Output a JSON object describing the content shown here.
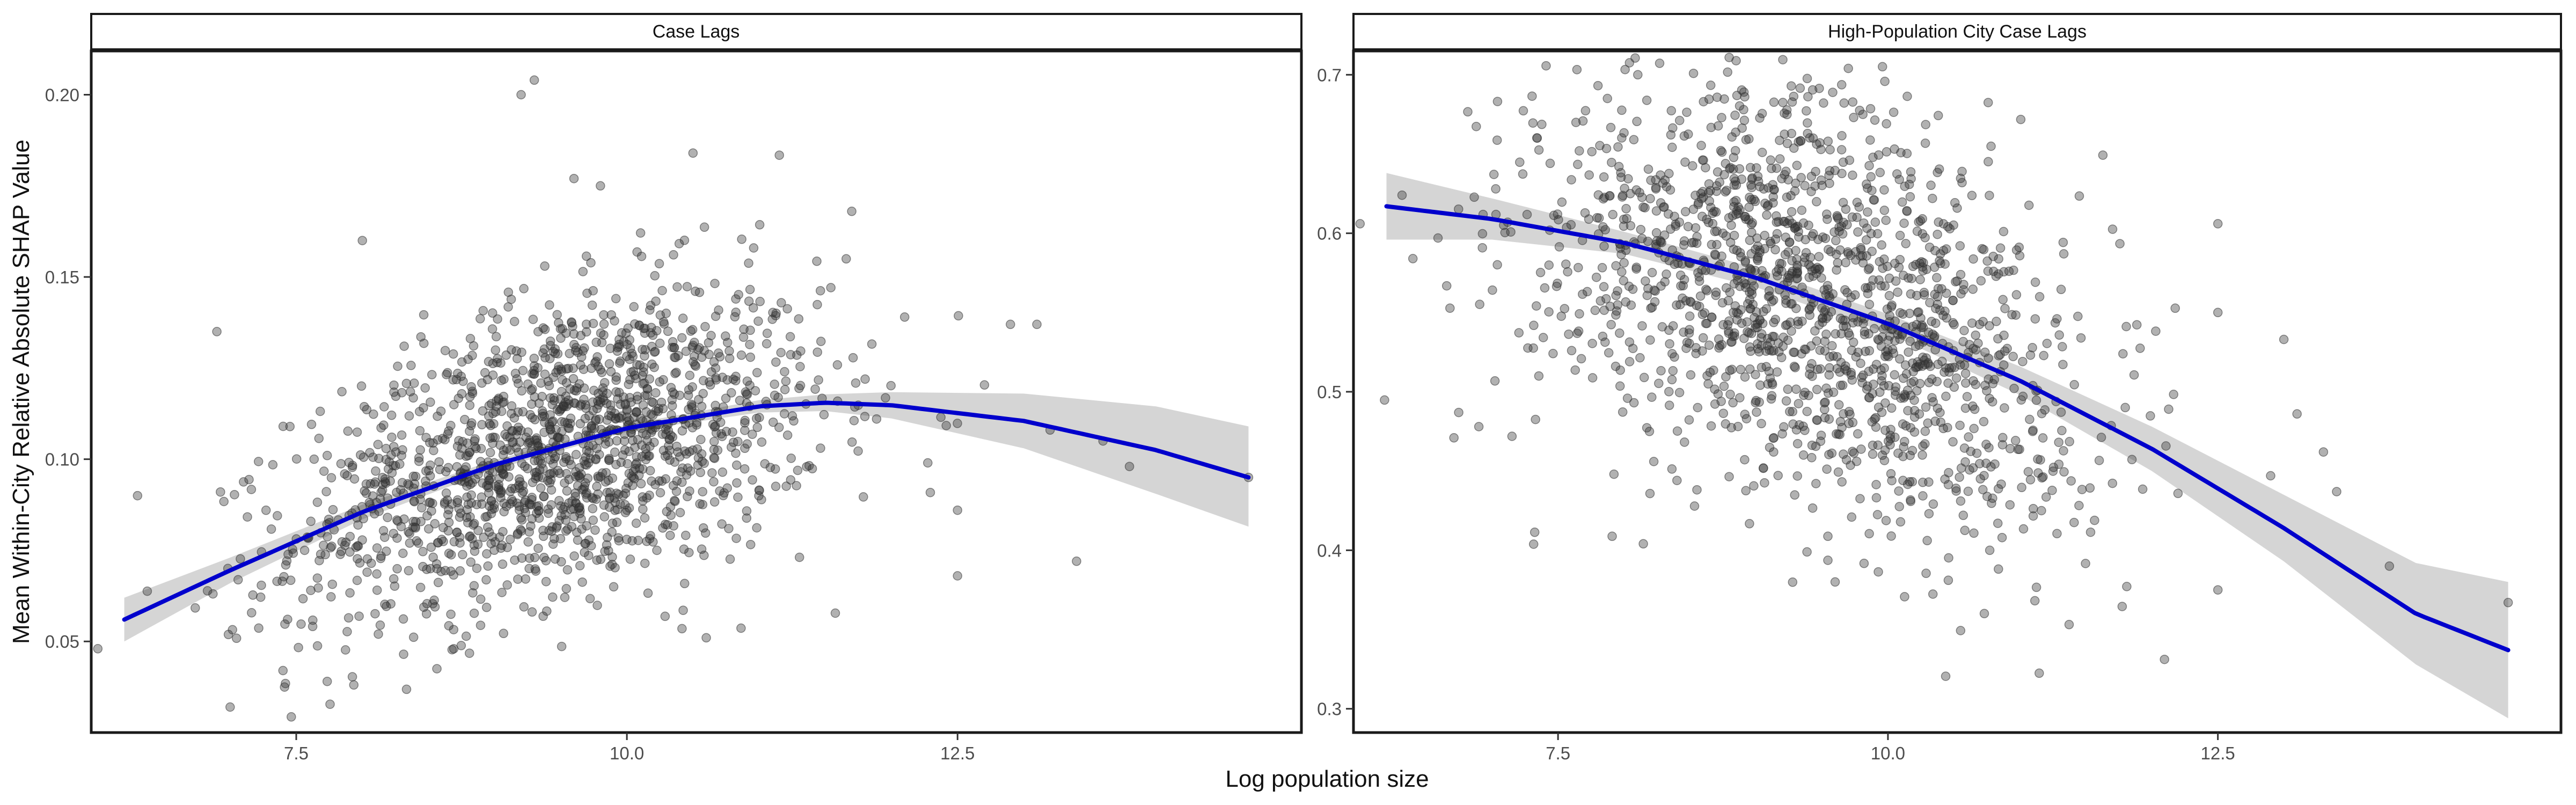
{
  "figure": {
    "xlabel": "Log population size",
    "ylabel": "Mean Within-City Relative Absolute SHAP Value",
    "colors": {
      "points": "#333333",
      "fit_line": "#0000CC",
      "ribbon": "#D3D3D3",
      "panel_border": "#1a1a1a"
    }
  },
  "chart_data": [
    {
      "type": "scatter",
      "title": "Case Lags",
      "xlabel": "Log population size",
      "ylabel": "Mean Within-City Relative Absolute SHAP Value",
      "xlim": [
        5.95,
        15.1
      ],
      "ylim": [
        0.025,
        0.212
      ],
      "x_ticks": [
        7.5,
        10.0,
        12.5
      ],
      "x_tick_labels": [
        "7.5",
        "10.0",
        "12.5"
      ],
      "y_ticks": [
        0.05,
        0.1,
        0.15,
        0.2
      ],
      "y_tick_labels": [
        "0.05",
        "0.10",
        "0.15",
        "0.20"
      ],
      "grid": false,
      "n_points_approx": 1600,
      "point_cloud": {
        "x_center": 9.5,
        "x_spread": 1.0,
        "y_center": 0.105,
        "y_spread": 0.02
      },
      "outliers": [
        {
          "x": 9.2,
          "y": 0.2
        },
        {
          "x": 9.3,
          "y": 0.204
        },
        {
          "x": 10.5,
          "y": 0.184
        },
        {
          "x": 9.6,
          "y": 0.177
        },
        {
          "x": 9.8,
          "y": 0.175
        },
        {
          "x": 11.7,
          "y": 0.168
        },
        {
          "x": 8.0,
          "y": 0.16
        },
        {
          "x": 6.9,
          "y": 0.135
        },
        {
          "x": 6.3,
          "y": 0.09
        },
        {
          "x": 6.0,
          "y": 0.048
        },
        {
          "x": 7.0,
          "y": 0.032
        },
        {
          "x": 7.4,
          "y": 0.042
        },
        {
          "x": 10.6,
          "y": 0.051
        },
        {
          "x": 13.4,
          "y": 0.072
        },
        {
          "x": 13.8,
          "y": 0.098
        },
        {
          "x": 12.5,
          "y": 0.068
        },
        {
          "x": 13.1,
          "y": 0.137
        },
        {
          "x": 12.9,
          "y": 0.137
        },
        {
          "x": 12.1,
          "y": 0.139
        },
        {
          "x": 14.7,
          "y": 0.095
        },
        {
          "x": 12.5,
          "y": 0.086
        },
        {
          "x": 13.2,
          "y": 0.108
        },
        {
          "x": 13.6,
          "y": 0.105
        }
      ],
      "fit": {
        "x": [
          6.2,
          7.0,
          8.0,
          9.0,
          10.0,
          11.0,
          11.5,
          12.0,
          13.0,
          14.0,
          14.7
        ],
        "y": [
          0.056,
          0.0695,
          0.0855,
          0.0985,
          0.1085,
          0.1145,
          0.1155,
          0.1148,
          0.1105,
          0.1025,
          0.095
        ],
        "lower": [
          0.05,
          0.066,
          0.0835,
          0.0972,
          0.1075,
          0.1128,
          0.1132,
          0.1112,
          0.103,
          0.0905,
          0.0815
        ],
        "upper": [
          0.062,
          0.073,
          0.0875,
          0.0998,
          0.1095,
          0.1162,
          0.1178,
          0.1184,
          0.118,
          0.1145,
          0.109
        ]
      }
    },
    {
      "type": "scatter",
      "title": "High-Population City Case Lags",
      "xlabel": "Log population size",
      "ylabel": "",
      "xlim": [
        5.95,
        15.1
      ],
      "ylim": [
        0.285,
        0.715
      ],
      "x_ticks": [
        7.5,
        10.0,
        12.5
      ],
      "x_tick_labels": [
        "7.5",
        "10.0",
        "12.5"
      ],
      "y_ticks": [
        0.3,
        0.4,
        0.5,
        0.6,
        0.7
      ],
      "y_tick_labels": [
        "0.3",
        "0.4",
        "0.5",
        "0.6",
        "0.7"
      ],
      "grid": false,
      "n_points_approx": 1600,
      "point_cloud": {
        "x_center": 9.4,
        "x_spread": 1.05,
        "y_center": 0.545,
        "y_spread": 0.065
      },
      "outliers": [
        {
          "x": 6.0,
          "y": 0.606
        },
        {
          "x": 6.4,
          "y": 0.584
        },
        {
          "x": 6.9,
          "y": 0.478
        },
        {
          "x": 9.7,
          "y": 0.704
        },
        {
          "x": 14.7,
          "y": 0.367
        },
        {
          "x": 13.8,
          "y": 0.39
        },
        {
          "x": 13.4,
          "y": 0.437
        },
        {
          "x": 13.3,
          "y": 0.462
        },
        {
          "x": 13.0,
          "y": 0.533
        },
        {
          "x": 13.1,
          "y": 0.486
        },
        {
          "x": 12.5,
          "y": 0.606
        },
        {
          "x": 12.5,
          "y": 0.375
        },
        {
          "x": 12.5,
          "y": 0.55
        },
        {
          "x": 12.9,
          "y": 0.447
        },
        {
          "x": 9.6,
          "y": 0.38
        }
      ],
      "fit": {
        "x": [
          6.2,
          7.0,
          8.0,
          9.0,
          10.0,
          11.0,
          12.0,
          13.0,
          14.0,
          14.7
        ],
        "y": [
          0.617,
          0.609,
          0.594,
          0.572,
          0.543,
          0.507,
          0.464,
          0.414,
          0.36,
          0.337
        ],
        "lower": [
          0.596,
          0.596,
          0.587,
          0.566,
          0.537,
          0.498,
          0.45,
          0.393,
          0.328,
          0.294
        ],
        "upper": [
          0.638,
          0.622,
          0.601,
          0.578,
          0.549,
          0.516,
          0.478,
          0.435,
          0.392,
          0.38
        ]
      }
    }
  ]
}
